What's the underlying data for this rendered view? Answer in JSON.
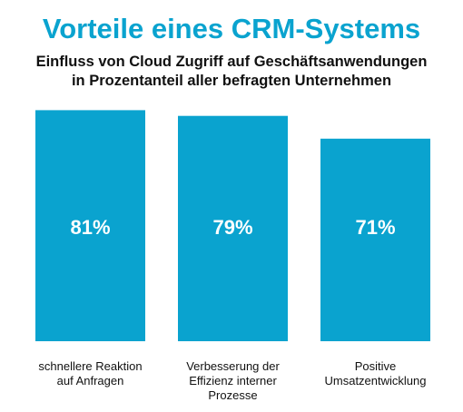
{
  "chart_data": {
    "type": "bar",
    "title": "Vorteile eines CRM-Systems",
    "subtitle_lines": [
      "Einfluss von Cloud Zugriff auf Geschäftsanwendungen",
      "in Prozentanteil aller befragten Unternehmen"
    ],
    "categories": [
      [
        "schnellere Reaktion",
        "auf Anfragen"
      ],
      [
        "Verbesserung der",
        "Effizienz interner",
        "Prozesse"
      ],
      [
        "Positive",
        "Umsatzentwicklung"
      ]
    ],
    "values": [
      81,
      79,
      71
    ],
    "value_labels": [
      "81%",
      "79%",
      "71%"
    ],
    "ylim": [
      0,
      100
    ],
    "grid": false,
    "legend": "none",
    "bar_color": "#0aa3cf",
    "title_color": "#0aa3cf",
    "value_label_color": "#ffffff"
  }
}
